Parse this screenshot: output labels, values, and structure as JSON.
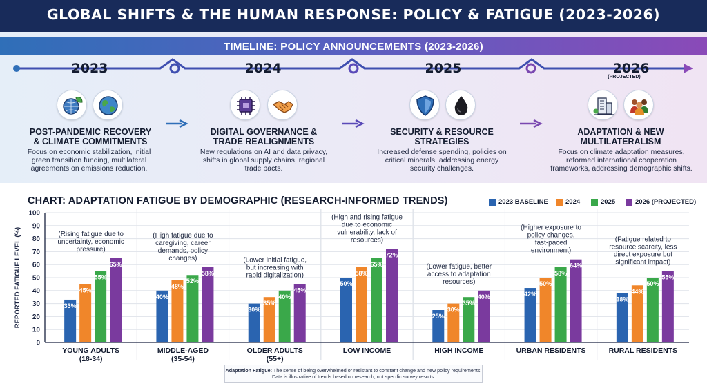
{
  "header": {
    "title": "GLOBAL SHIFTS & THE HUMAN RESPONSE: POLICY & FATIGUE (2023-2026)"
  },
  "timeline": {
    "banner": "TIMELINE: POLICY ANNOUNCEMENTS (2023-2026)",
    "periods": [
      {
        "year": "2023",
        "note": "",
        "icons": [
          "globe-leaf-icon",
          "earth-icon"
        ],
        "title": "POST-PANDEMIC RECOVERY & CLIMATE COMMITMENTS",
        "title_lines": [
          "POST-PANDEMIC RECOVERY",
          "& CLIMATE COMMITMENTS"
        ],
        "desc_lines": [
          "Focus on economic stabilization, initial",
          "green transition funding, multilateral",
          "agreements on emissions reduction."
        ]
      },
      {
        "year": "2024",
        "note": "",
        "icons": [
          "chip-icon",
          "handshake-icon"
        ],
        "title": "DIGITAL GOVERNANCE & TRADE REALIGNMENTS",
        "title_lines": [
          "DIGITAL GOVERNANCE &",
          "TRADE REALIGNMENTS"
        ],
        "desc_lines": [
          "New regulations on AI and data privacy,",
          "shifts in global supply chains, regional",
          "trade pacts."
        ]
      },
      {
        "year": "2025",
        "note": "",
        "icons": [
          "shield-icon",
          "oil-drop-icon"
        ],
        "title": "SECURITY & RESOURCE STRATEGIES",
        "title_lines": [
          "SECURITY & RESOURCE",
          "STRATEGIES"
        ],
        "desc_lines": [
          "Increased defense spending, policies on",
          "critical minerals, addressing energy",
          "security challenges."
        ]
      },
      {
        "year": "2026",
        "note": "(PROJECTED)",
        "icons": [
          "city-building-icon",
          "people-group-icon"
        ],
        "title": "ADAPTATION & NEW MULTILATERALISM",
        "title_lines": [
          "ADAPTATION & NEW",
          "MULTILATERALISM"
        ],
        "desc_lines": [
          "Focus on climate adaptation measures,",
          "reformed international cooperation",
          "frameworks, addressing demographic shifts."
        ]
      }
    ]
  },
  "colors": {
    "s2023": "#2a64b0",
    "s2024": "#f0862a",
    "s2025": "#3aa84a",
    "s2026": "#7a3a9e"
  },
  "chart_data": {
    "type": "bar",
    "title": "CHART: ADAPTATION FATIGUE BY DEMOGRAPHIC (RESEARCH-INFORMED TRENDS)",
    "ylabel": "REPORTED FATIGUE LEVEL (%)",
    "xlabel": "",
    "ylim": [
      0,
      100
    ],
    "yticks": [
      0,
      10,
      20,
      30,
      40,
      50,
      60,
      70,
      80,
      90,
      100
    ],
    "grid": true,
    "legend_position": "top-right",
    "categories": [
      "YOUNG ADULTS (18-34)",
      "MIDDLE-AGED (35-54)",
      "OLDER ADULTS (55+)",
      "LOW INCOME",
      "HIGH INCOME",
      "URBAN RESIDENTS",
      "RURAL RESIDENTS"
    ],
    "category_lines": [
      [
        "YOUNG ADULTS",
        "(18-34)"
      ],
      [
        "MIDDLE-AGED",
        "(35-54)"
      ],
      [
        "OLDER ADULTS",
        "(55+)"
      ],
      [
        "LOW INCOME"
      ],
      [
        "HIGH INCOME"
      ],
      [
        "URBAN RESIDENTS"
      ],
      [
        "RURAL RESIDENTS"
      ]
    ],
    "series": [
      {
        "name": "2023 BASELINE",
        "values": [
          33,
          40,
          30,
          50,
          25,
          42,
          38
        ]
      },
      {
        "name": "2024",
        "values": [
          45,
          48,
          35,
          58,
          30,
          50,
          44
        ]
      },
      {
        "name": "2025",
        "values": [
          55,
          52,
          40,
          65,
          35,
          58,
          50
        ]
      },
      {
        "name": "2026 (PROJECTED)",
        "values": [
          65,
          58,
          45,
          72,
          40,
          64,
          55
        ]
      }
    ],
    "annotations": [
      [
        "(Rising fatigue due to",
        "uncertainty, economic",
        "pressure)"
      ],
      [
        "(High fatigue due to",
        "caregiving, career",
        "demands, policy",
        "changes)"
      ],
      [
        "(Lower initial fatigue,",
        "but increasing with",
        "rapid digitalization)"
      ],
      [
        "(High and rising fatigue",
        "due to economic",
        "vulnerability, lack of",
        "resources)"
      ],
      [
        "(Lower fatigue, better",
        "access to adaptation",
        "resources)"
      ],
      [
        "(Higher exposure to",
        "policy changes,",
        "fast-paced",
        "environment)"
      ],
      [
        "(Fatigue related to",
        "resource scarcity, less",
        "direct exposure but",
        "significant impact)"
      ]
    ]
  },
  "footnote": {
    "term": "Adaptation Fatigue:",
    "line1": " The sense of being overwhelmed or resistant to constant change and new policy requirements.",
    "line2": "Data is illustrative of trends based on research, not specific survey results."
  }
}
